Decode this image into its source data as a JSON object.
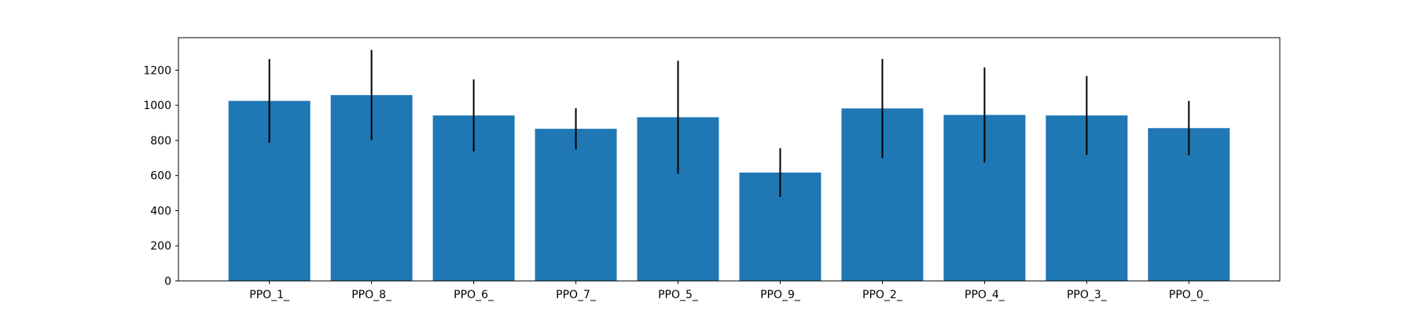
{
  "chart_data": {
    "type": "bar",
    "title": "",
    "xlabel": "",
    "ylabel": "",
    "categories": [
      "PPO_1_",
      "PPO_8_",
      "PPO_6_",
      "PPO_7_",
      "PPO_5_",
      "PPO_9_",
      "PPO_2_",
      "PPO_4_",
      "PPO_3_",
      "PPO_0_"
    ],
    "values": [
      1025,
      1058,
      942,
      866,
      932,
      617,
      982,
      945,
      942,
      870
    ],
    "errors": [
      238,
      257,
      205,
      117,
      322,
      139,
      282,
      270,
      225,
      155
    ],
    "ylim": [
      0,
      1385
    ],
    "yticks": [
      0,
      200,
      400,
      600,
      800,
      1000,
      1200
    ],
    "ytick_labels": [
      "0",
      "200",
      "400",
      "600",
      "800",
      "1000",
      "1200"
    ],
    "bar_color": "#1f77b4",
    "error_color": "#000000",
    "grid": false,
    "legend": "none"
  }
}
